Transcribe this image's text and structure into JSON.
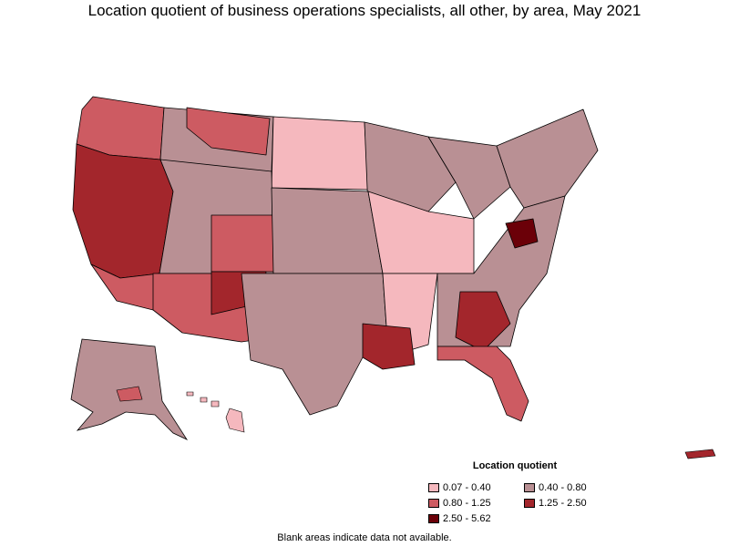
{
  "title": "Location quotient of business operations specialists, all other, by area, May 2021",
  "legend": {
    "title": "Location quotient",
    "items": [
      {
        "label": "0.07 - 0.40",
        "color": "#f5b8be"
      },
      {
        "label": "0.40 - 0.80",
        "color": "#b99094"
      },
      {
        "label": "0.80 - 1.25",
        "color": "#cd5b62"
      },
      {
        "label": "1.25 - 2.50",
        "color": "#a3262c"
      },
      {
        "label": "2.50 - 5.62",
        "color": "#6b0008"
      }
    ]
  },
  "footnote": "Blank areas indicate data not available.",
  "colors": {
    "border": "#000000",
    "background": "#ffffff"
  }
}
